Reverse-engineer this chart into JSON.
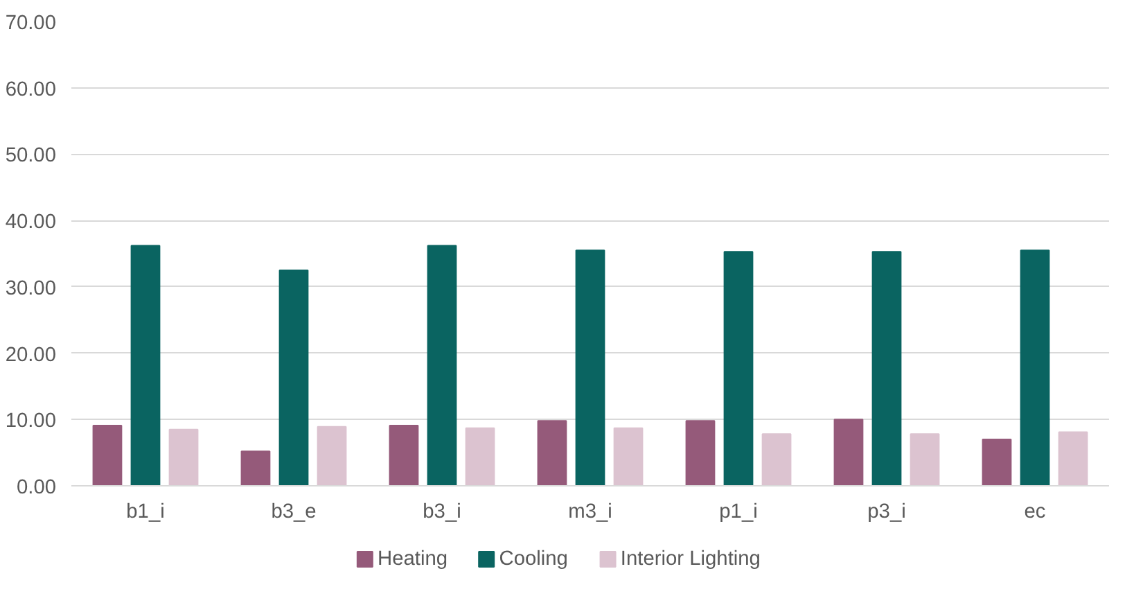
{
  "chart_data": {
    "type": "bar",
    "categories": [
      "b1_i",
      "b3_e",
      "b3_i",
      "m3_i",
      "p1_i",
      "p3_i",
      "ec"
    ],
    "series": [
      {
        "name": "Heating",
        "color": "#955a7a",
        "values": [
          9.1,
          5.2,
          9.1,
          9.8,
          9.8,
          10.0,
          7.0
        ]
      },
      {
        "name": "Cooling",
        "color": "#0a6461",
        "values": [
          36.2,
          32.5,
          36.2,
          35.5,
          35.3,
          35.3,
          35.5
        ]
      },
      {
        "name": "Interior Lighting",
        "color": "#dcc3d0",
        "values": [
          8.5,
          8.9,
          8.7,
          8.7,
          7.8,
          7.8,
          8.1
        ]
      }
    ],
    "ylim": [
      0,
      70
    ],
    "yticks": [
      {
        "value": 0,
        "label": "0.00"
      },
      {
        "value": 10,
        "label": "10.00"
      },
      {
        "value": 20,
        "label": "20.00"
      },
      {
        "value": 30,
        "label": "30.00"
      },
      {
        "value": 40,
        "label": "40.00"
      },
      {
        "value": 50,
        "label": "50.00"
      },
      {
        "value": 60,
        "label": "60.00"
      },
      {
        "value": 70,
        "label": "70.00"
      }
    ],
    "grid": "y",
    "legend": "bottom"
  }
}
